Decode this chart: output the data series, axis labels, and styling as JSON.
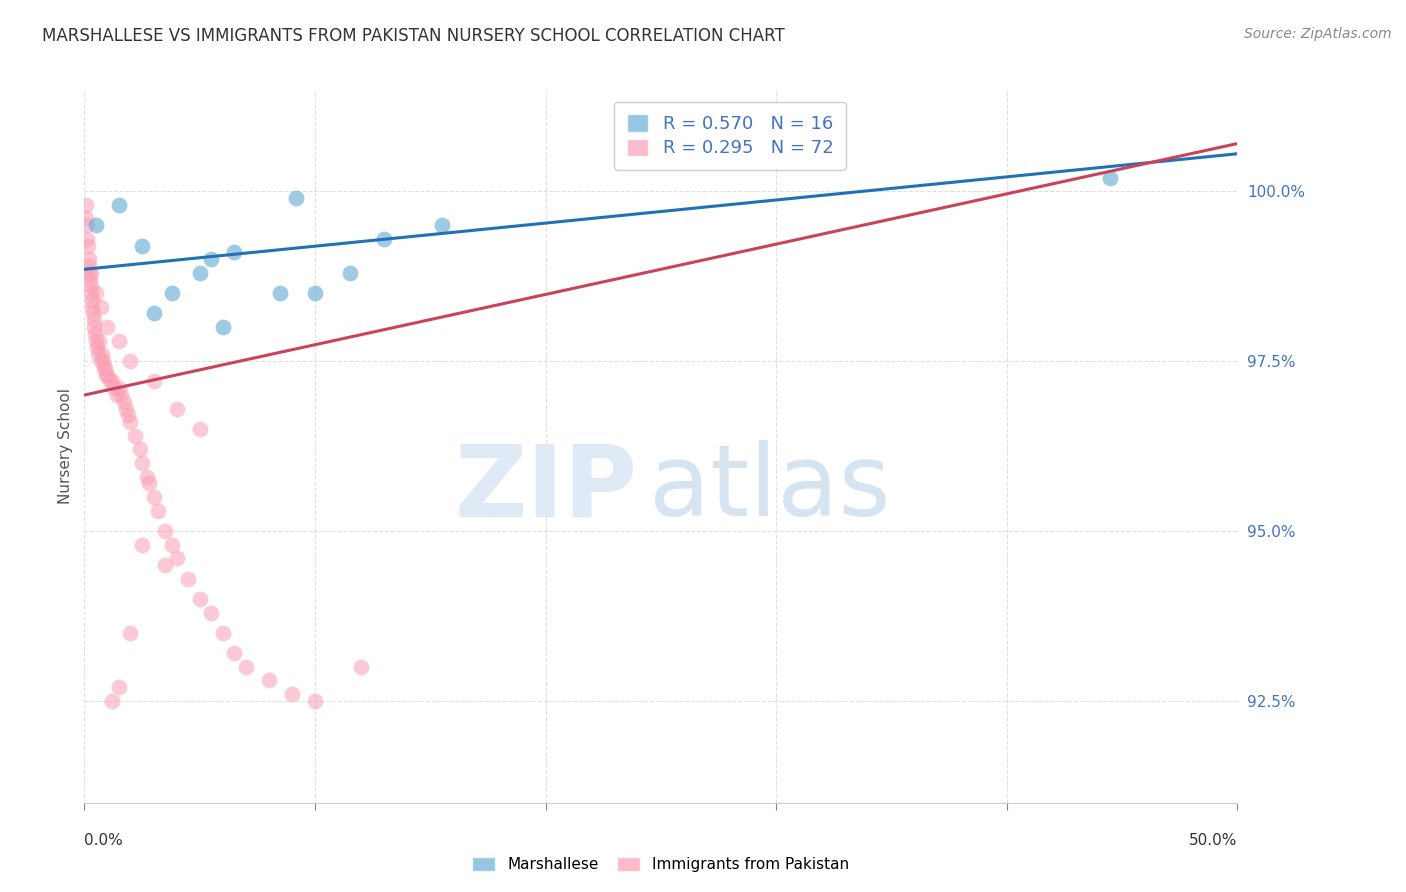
{
  "title": "MARSHALLESE VS IMMIGRANTS FROM PAKISTAN NURSERY SCHOOL CORRELATION CHART",
  "source": "Source: ZipAtlas.com",
  "ylabel": "Nursery School",
  "yticks": [
    92.5,
    95.0,
    97.5,
    100.0
  ],
  "ytick_labels": [
    "92.5%",
    "95.0%",
    "97.5%",
    "100.0%"
  ],
  "xlim": [
    0.0,
    50.0
  ],
  "ylim": [
    91.0,
    101.5
  ],
  "legend_line1": "R = 0.570   N = 16",
  "legend_line2": "R = 0.295   N = 72",
  "blue_color": "#6baed6",
  "pink_color": "#fa9fb5",
  "blue_line_color": "#2171b5",
  "pink_line_color": "#c9435a",
  "background_color": "#ffffff",
  "grid_color": "#dddddd",
  "ytick_color": "#4472C4",
  "title_color": "#333333",
  "source_color": "#888888",
  "blue_scatter_x": [
    0.5,
    1.5,
    2.5,
    3.0,
    3.8,
    5.0,
    5.5,
    6.0,
    6.5,
    8.5,
    9.2,
    10.0,
    11.5,
    13.0,
    15.5,
    44.5
  ],
  "blue_scatter_y": [
    99.5,
    99.8,
    99.2,
    98.2,
    98.5,
    98.8,
    99.0,
    98.0,
    99.1,
    98.5,
    99.9,
    98.5,
    98.8,
    99.3,
    99.5,
    100.2
  ],
  "pink_scatter_x": [
    0.05,
    0.08,
    0.1,
    0.12,
    0.15,
    0.18,
    0.2,
    0.22,
    0.25,
    0.28,
    0.3,
    0.32,
    0.35,
    0.38,
    0.4,
    0.42,
    0.45,
    0.5,
    0.55,
    0.6,
    0.65,
    0.7,
    0.75,
    0.8,
    0.85,
    0.9,
    0.95,
    1.0,
    1.1,
    1.2,
    1.3,
    1.4,
    1.5,
    1.6,
    1.7,
    1.8,
    1.9,
    2.0,
    2.2,
    2.4,
    2.5,
    2.7,
    2.8,
    3.0,
    3.2,
    3.5,
    3.8,
    4.0,
    4.5,
    5.0,
    5.5,
    6.0,
    6.5,
    7.0,
    8.0,
    9.0,
    10.0,
    12.0,
    1.2,
    1.5,
    2.0,
    2.5,
    3.5,
    0.3,
    0.5,
    0.7,
    1.0,
    1.5,
    2.0,
    3.0,
    4.0,
    5.0
  ],
  "pink_scatter_y": [
    99.8,
    99.6,
    99.5,
    99.3,
    99.2,
    99.0,
    98.9,
    98.8,
    98.7,
    98.6,
    98.5,
    98.4,
    98.3,
    98.2,
    98.1,
    98.0,
    97.9,
    97.8,
    97.7,
    97.6,
    97.8,
    97.5,
    97.6,
    97.5,
    97.4,
    97.4,
    97.3,
    97.3,
    97.2,
    97.2,
    97.1,
    97.0,
    97.1,
    97.0,
    96.9,
    96.8,
    96.7,
    96.6,
    96.4,
    96.2,
    96.0,
    95.8,
    95.7,
    95.5,
    95.3,
    95.0,
    94.8,
    94.6,
    94.3,
    94.0,
    93.8,
    93.5,
    93.2,
    93.0,
    92.8,
    92.6,
    92.5,
    93.0,
    92.5,
    92.7,
    93.5,
    94.8,
    94.5,
    98.8,
    98.5,
    98.3,
    98.0,
    97.8,
    97.5,
    97.2,
    96.8,
    96.5
  ],
  "blue_trend_x": [
    0.0,
    50.0
  ],
  "blue_trend_y": [
    98.85,
    100.55
  ],
  "pink_trend_x": [
    0.0,
    50.0
  ],
  "pink_trend_y": [
    97.0,
    100.7
  ]
}
